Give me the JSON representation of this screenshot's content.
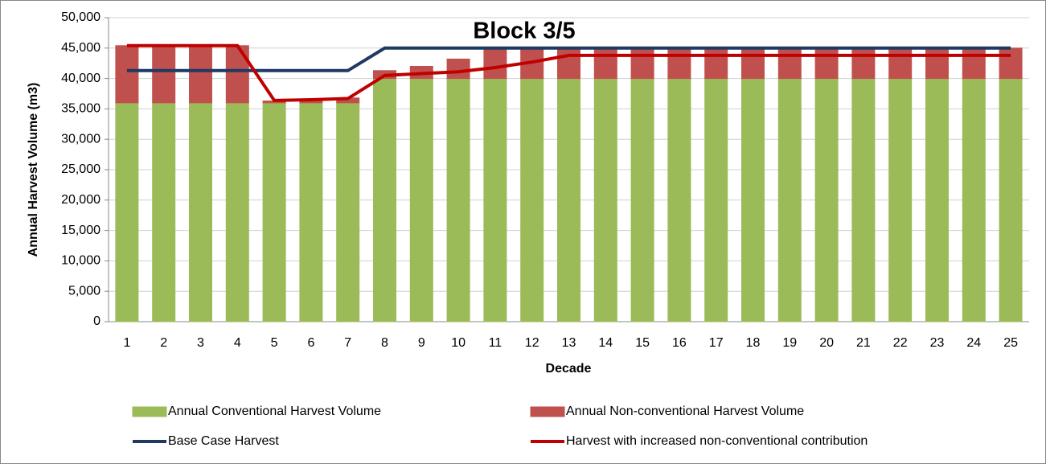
{
  "chart_data": {
    "type": "bar",
    "title": "Block 3/5",
    "x_label": "Decade",
    "y_label": "Annual Harvest Volume (m3)",
    "categories": [
      "1",
      "2",
      "3",
      "4",
      "5",
      "6",
      "7",
      "8",
      "9",
      "10",
      "11",
      "12",
      "13",
      "14",
      "15",
      "16",
      "17",
      "18",
      "19",
      "20",
      "21",
      "22",
      "23",
      "24",
      "25"
    ],
    "stacked": true,
    "grid": true,
    "legend": "bottom",
    "ylim": [
      0,
      50000
    ],
    "yticks": [
      0,
      {
        "value": 5000,
        "label": "5,000"
      },
      {
        "value": 10000,
        "label": "10,000"
      },
      {
        "value": 15000,
        "label": "15,000"
      },
      {
        "value": 20000,
        "label": "20,000"
      },
      {
        "value": 25000,
        "label": "25,000"
      },
      {
        "value": 30000,
        "label": "30,000"
      },
      {
        "value": 35000,
        "label": "35,000"
      },
      {
        "value": 40000,
        "label": "40,000"
      },
      {
        "value": 45000,
        "label": "45,000"
      },
      {
        "value": 50000,
        "label": "50,000"
      }
    ],
    "series": [
      {
        "name": "Annual Conventional Harvest Volume",
        "type": "bar",
        "color": "#9bbb59",
        "values": [
          36000,
          36000,
          36000,
          36000,
          36000,
          36000,
          36000,
          40000,
          40000,
          40000,
          40000,
          40000,
          40000,
          40000,
          40000,
          40000,
          40000,
          40000,
          40000,
          40000,
          40000,
          40000,
          40000,
          40000,
          40000
        ]
      },
      {
        "name": "Annual Non-conventional Harvest Volume",
        "type": "bar",
        "color": "#c0504d",
        "values": [
          9400,
          9400,
          9400,
          9400,
          300,
          500,
          800,
          1300,
          2000,
          3200,
          5000,
          5000,
          5000,
          5000,
          5000,
          5000,
          5000,
          5000,
          5000,
          5000,
          5000,
          5000,
          5000,
          5000,
          5000
        ]
      },
      {
        "name": "Base Case Harvest",
        "type": "line",
        "color": "#1f3864",
        "values": [
          41300,
          41300,
          41300,
          41300,
          41300,
          41300,
          41300,
          45000,
          45000,
          45000,
          45000,
          45000,
          45000,
          45000,
          45000,
          45000,
          45000,
          45000,
          45000,
          45000,
          45000,
          45000,
          45000,
          45000,
          45000
        ]
      },
      {
        "name": "Harvest with increased non-conventional contribution",
        "type": "line",
        "color": "#c00000",
        "values": [
          45400,
          45400,
          45400,
          45400,
          36400,
          36500,
          36700,
          40500,
          40800,
          41100,
          41800,
          42700,
          43800,
          43800,
          43800,
          43800,
          43800,
          43800,
          43800,
          43800,
          43800,
          43800,
          43800,
          43800,
          43800
        ]
      }
    ]
  }
}
